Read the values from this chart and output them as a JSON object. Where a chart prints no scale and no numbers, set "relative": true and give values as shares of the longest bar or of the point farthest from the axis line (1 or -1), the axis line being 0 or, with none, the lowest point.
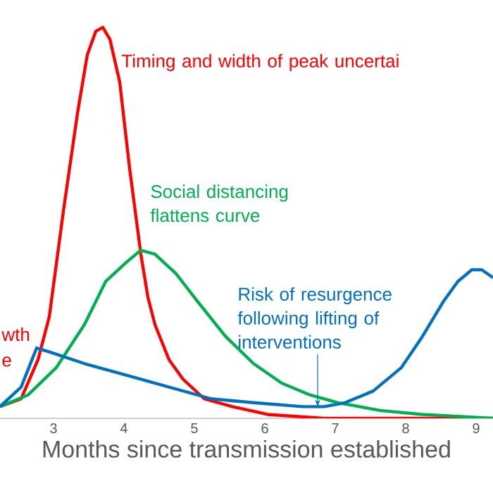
{
  "chart_data": {
    "type": "line",
    "relative": true,
    "xlabel": "Months since transmission established",
    "xlim": [
      2.24,
      9.24
    ],
    "xticks": [
      3,
      4,
      5,
      6,
      7,
      8,
      9
    ],
    "annotations": [
      "Timing and width of peak uncertai",
      "Social distancing flattens curve",
      {
        "text": "Risk of resurgence following lifting of interventions",
        "x": 6.75,
        "y": 0.03
      },
      "wth",
      "e"
    ],
    "series": [
      {
        "color": "#ff0000",
        "x": [
          2.24,
          2.54,
          2.78,
          2.94,
          3.14,
          3.34,
          3.48,
          3.6,
          3.7,
          3.8,
          3.94,
          4.08,
          4.24,
          4.34,
          4.44,
          4.64,
          4.84,
          5.14,
          5.54,
          6.04,
          6.84,
          8.04,
          9.24
        ],
        "values": [
          0.03,
          0.05,
          0.15,
          0.26,
          0.53,
          0.78,
          0.93,
          0.99,
          1,
          0.97,
          0.86,
          0.64,
          0.42,
          0.31,
          0.24,
          0.15,
          0.1,
          0.05,
          0.03,
          0.01,
          0,
          0,
          0
        ]
      },
      {
        "color": "#00b050",
        "x": [
          2.24,
          2.64,
          3.04,
          3.44,
          3.74,
          4.04,
          4.24,
          4.44,
          4.74,
          5.04,
          5.44,
          5.84,
          6.24,
          6.64,
          7.04,
          7.64,
          8.24,
          9.24
        ],
        "values": [
          0.03,
          0.06,
          0.13,
          0.24,
          0.35,
          0.4,
          0.43,
          0.42,
          0.37,
          0.3,
          0.21,
          0.14,
          0.09,
          0.06,
          0.04,
          0.02,
          0.01,
          0
        ]
      },
      {
        "color": "#0070c0",
        "x": [
          2.24,
          2.54,
          2.76,
          2.94,
          3.44,
          4.04,
          4.64,
          5.24,
          5.84,
          6.54,
          6.84,
          7.14,
          7.54,
          7.94,
          8.24,
          8.54,
          8.74,
          8.94,
          9.08,
          9.24
        ],
        "values": [
          0.03,
          0.08,
          0.18,
          0.17,
          0.14,
          0.11,
          0.08,
          0.05,
          0.04,
          0.03,
          0.03,
          0.04,
          0.07,
          0.13,
          0.21,
          0.3,
          0.35,
          0.38,
          0.38,
          0.36
        ]
      }
    ]
  }
}
